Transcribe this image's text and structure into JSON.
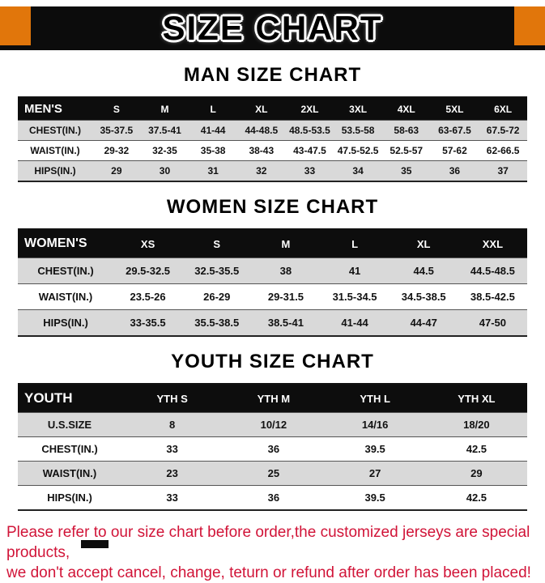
{
  "banner": {
    "title": "SIZE CHART"
  },
  "tables": {
    "men": {
      "heading": "MAN SIZE CHART",
      "header": [
        "MEN'S",
        "S",
        "M",
        "L",
        "XL",
        "2XL",
        "3XL",
        "4XL",
        "5XL",
        "6XL"
      ],
      "rows": [
        [
          "CHEST(IN.)",
          "35-37.5",
          "37.5-41",
          "41-44",
          "44-48.5",
          "48.5-53.5",
          "53.5-58",
          "58-63",
          "63-67.5",
          "67.5-72"
        ],
        [
          "WAIST(IN.)",
          "29-32",
          "32-35",
          "35-38",
          "38-43",
          "43-47.5",
          "47.5-52.5",
          "52.5-57",
          "57-62",
          "62-66.5"
        ],
        [
          "HIPS(IN.)",
          "29",
          "30",
          "31",
          "32",
          "33",
          "34",
          "35",
          "36",
          "37"
        ]
      ]
    },
    "women": {
      "heading": "WOMEN SIZE CHART",
      "header": [
        "WOMEN'S",
        "XS",
        "S",
        "M",
        "L",
        "XL",
        "XXL"
      ],
      "rows": [
        [
          "CHEST(IN.)",
          "29.5-32.5",
          "32.5-35.5",
          "38",
          "41",
          "44.5",
          "44.5-48.5"
        ],
        [
          "WAIST(IN.)",
          "23.5-26",
          "26-29",
          "29-31.5",
          "31.5-34.5",
          "34.5-38.5",
          "38.5-42.5"
        ],
        [
          "HIPS(IN.)",
          "33-35.5",
          "35.5-38.5",
          "38.5-41",
          "41-44",
          "44-47",
          "47-50"
        ]
      ]
    },
    "youth": {
      "heading": "YOUTH SIZE CHART",
      "header": [
        "YOUTH",
        "YTH S",
        "YTH M",
        "YTH L",
        "YTH XL"
      ],
      "rows": [
        [
          "U.S.SIZE",
          "8",
          "10/12",
          "14/16",
          "18/20"
        ],
        [
          "CHEST(IN.)",
          "33",
          "36",
          "39.5",
          "42.5"
        ],
        [
          "WAIST(IN.)",
          "23",
          "25",
          "27",
          "29"
        ],
        [
          "HIPS(IN.)",
          "33",
          "36",
          "39.5",
          "42.5"
        ]
      ]
    }
  },
  "footer": {
    "line1": "Please refer to our size chart before order,the customized jerseys are special products,",
    "line2": "we don't accept cancel, change, teturn or refund after order has been placed!"
  },
  "colors": {
    "accent_orange": "#e1760b",
    "header_black": "#0d0d0d",
    "row_shade": "#d9d9d9",
    "footer_red": "#d11438"
  }
}
